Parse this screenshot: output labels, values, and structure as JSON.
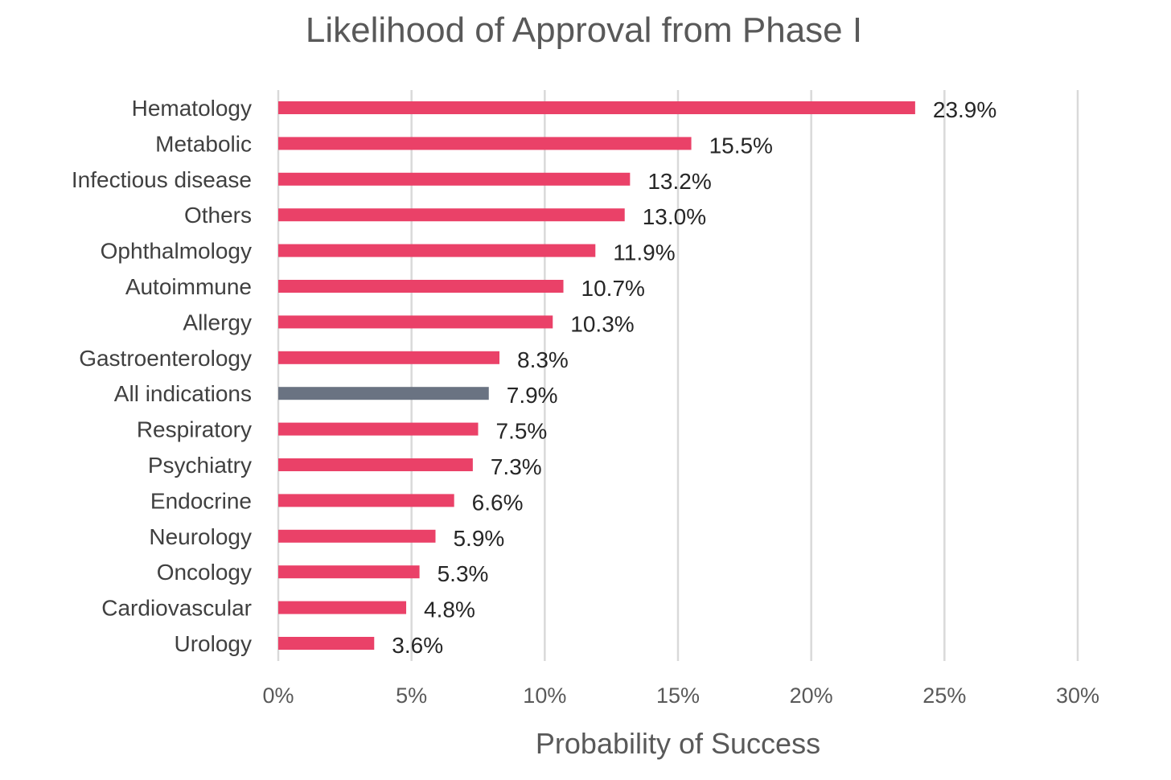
{
  "chart_data": {
    "type": "bar",
    "orientation": "horizontal",
    "title": "Likelihood of Approval from Phase I",
    "xlabel": "Probability of Success",
    "ylabel": "",
    "xlim": [
      0,
      30
    ],
    "x_ticks": [
      "0%",
      "5%",
      "10%",
      "15%",
      "20%",
      "25%",
      "30%"
    ],
    "grid": true,
    "legend": "none",
    "categories": [
      "Hematology",
      "Metabolic",
      "Infectious disease",
      "Others",
      "Ophthalmology",
      "Autoimmune",
      "Allergy",
      "Gastroenterology",
      "All indications",
      "Respiratory",
      "Psychiatry",
      "Endocrine",
      "Neurology",
      "Oncology",
      "Cardiovascular",
      "Urology"
    ],
    "values": [
      23.9,
      15.5,
      13.2,
      13.0,
      11.9,
      10.7,
      10.3,
      8.3,
      7.9,
      7.5,
      7.3,
      6.6,
      5.9,
      5.3,
      4.8,
      3.6
    ],
    "data_labels": [
      "23.9%",
      "15.5%",
      "13.2%",
      "13.0%",
      "11.9%",
      "10.7%",
      "10.3%",
      "8.3%",
      "7.9%",
      "7.5%",
      "7.3%",
      "6.6%",
      "5.9%",
      "5.3%",
      "4.8%",
      "3.6%"
    ],
    "highlight_category": "All indications",
    "colors": {
      "bar": "#ea4168",
      "highlight": "#6a7382",
      "grid": "#d9d9d9"
    }
  }
}
